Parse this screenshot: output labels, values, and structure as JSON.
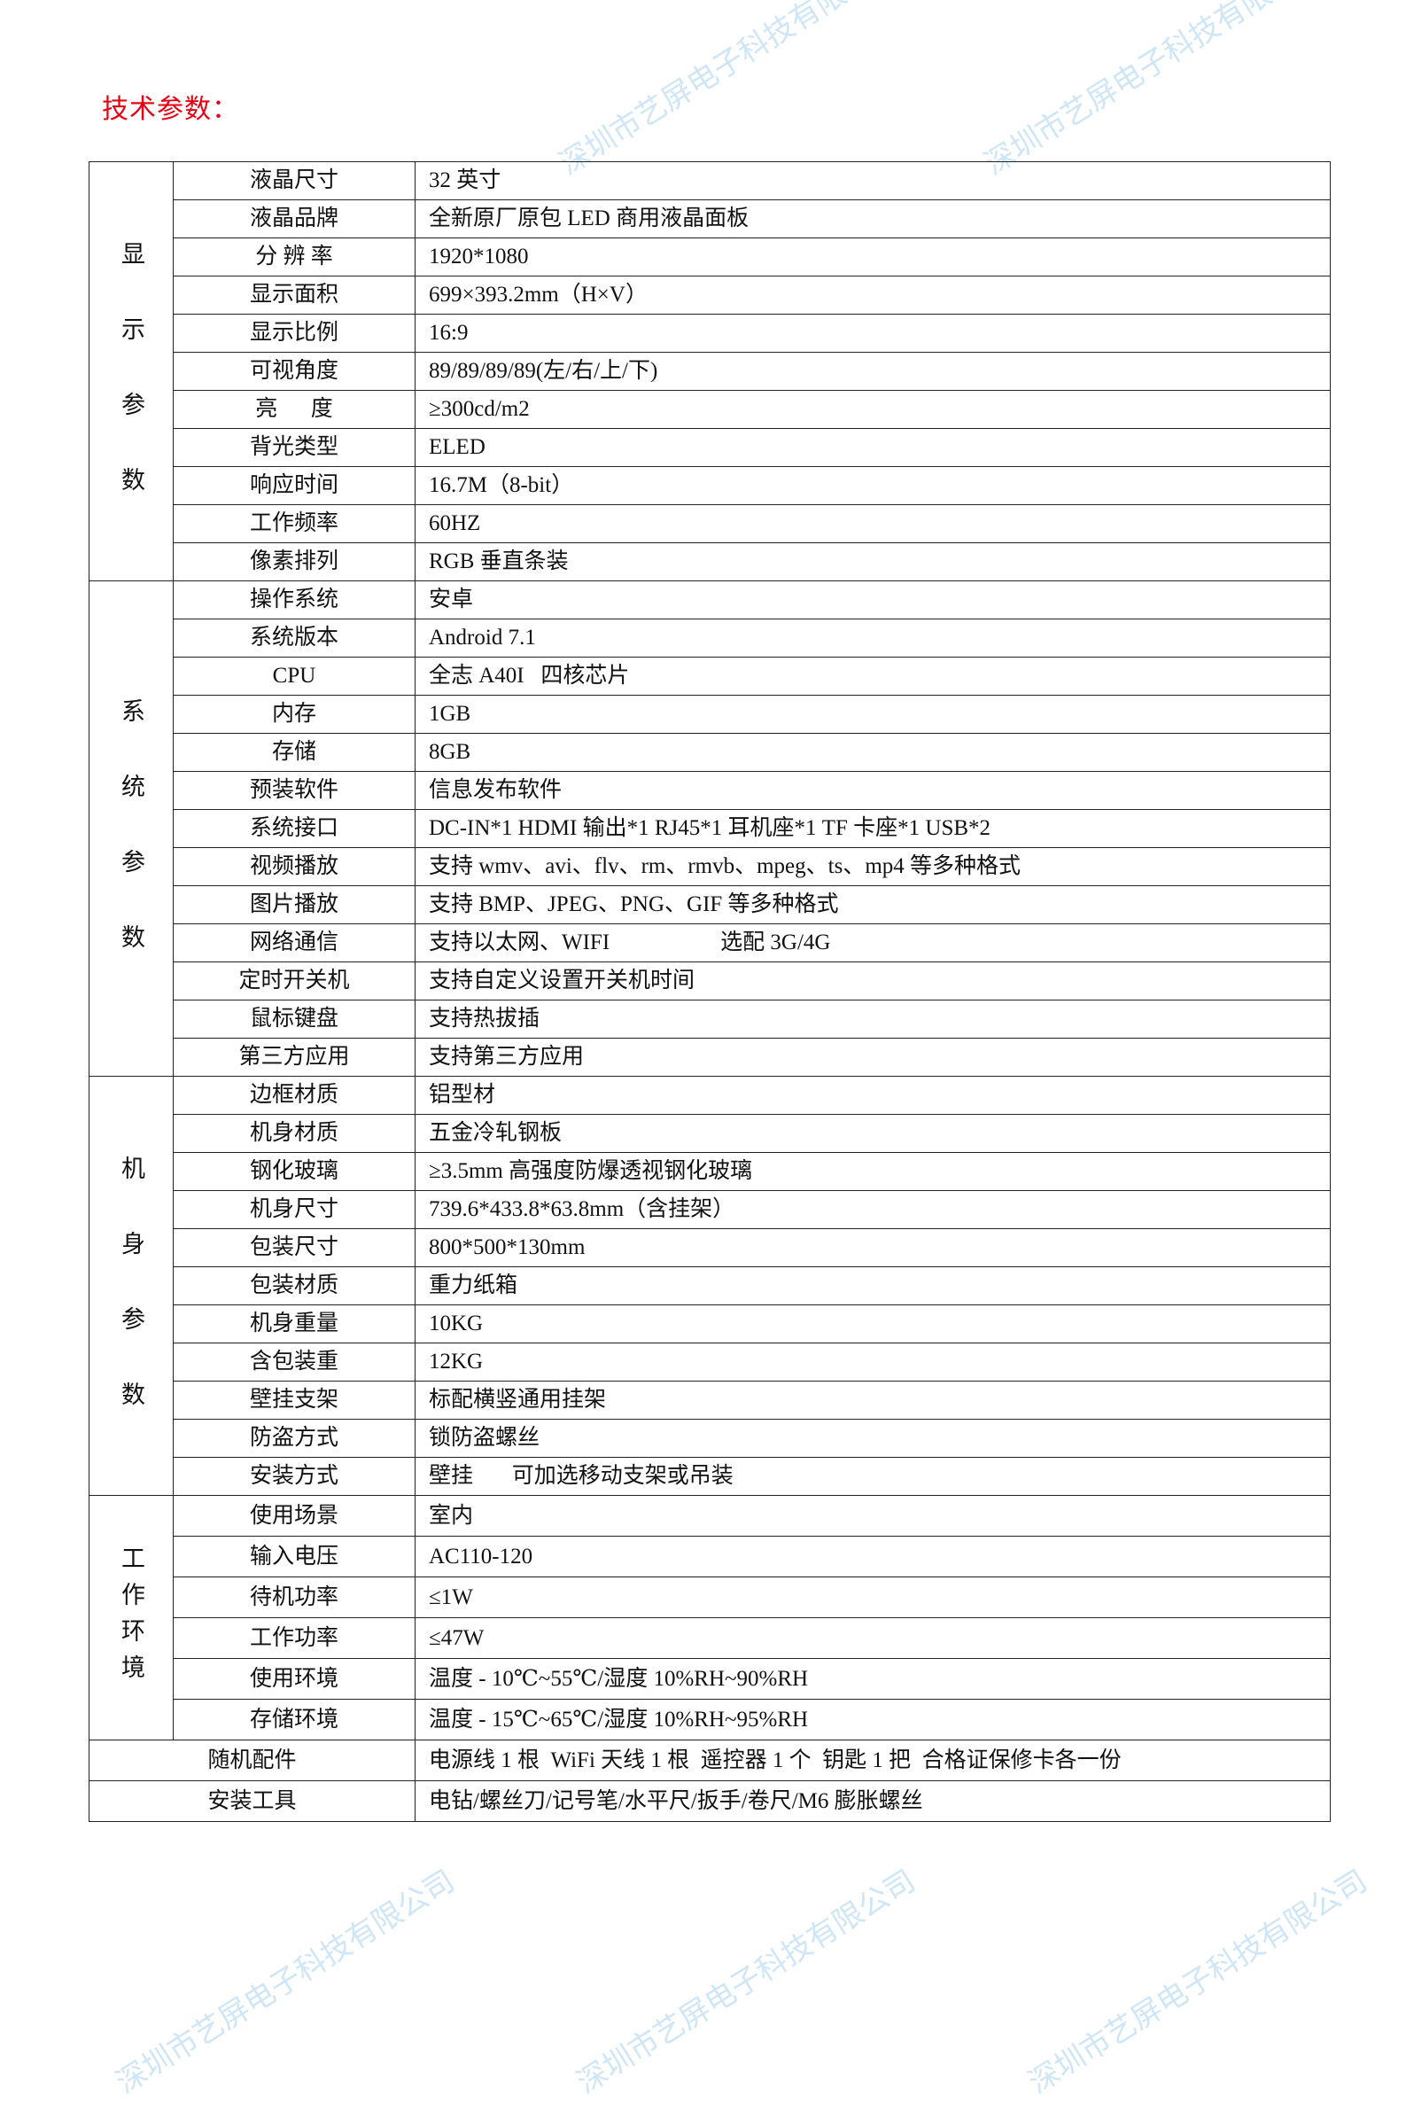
{
  "title": "技术参数：",
  "watermark": "深圳市艺屏电子科技有限公司",
  "colors": {
    "title": "#e60012",
    "watermark": "#cfe6f7"
  },
  "sections": [
    {
      "label": "显示参数",
      "rows": [
        [
          "液晶尺寸",
          "32 英寸"
        ],
        [
          "液晶品牌",
          "全新原厂原包 LED 商用液晶面板"
        ],
        [
          "分 辨 率",
          "1920*1080"
        ],
        [
          "显示面积",
          "699×393.2mm（H×V）"
        ],
        [
          "显示比例",
          "16:9"
        ],
        [
          "可视角度",
          "89/89/89/89(左/右/上/下)"
        ],
        [
          "亮      度",
          "≥300cd/m2"
        ],
        [
          "背光类型",
          "ELED"
        ],
        [
          "响应时间",
          "16.7M（8-bit）"
        ],
        [
          "工作频率",
          "60HZ"
        ],
        [
          "像素排列",
          "RGB 垂直条装"
        ]
      ]
    },
    {
      "label": "系统参数",
      "rows": [
        [
          "操作系统",
          "安卓"
        ],
        [
          "系统版本",
          "Android 7.1"
        ],
        [
          "CPU",
          "全志 A40I   四核芯片"
        ],
        [
          "内存",
          "1GB"
        ],
        [
          "存储",
          "8GB"
        ],
        [
          "预装软件",
          "信息发布软件"
        ],
        [
          "系统接口",
          "DC-IN*1 HDMI 输出*1 RJ45*1 耳机座*1 TF 卡座*1 USB*2"
        ],
        [
          "视频播放",
          "支持 wmv、avi、flv、rm、rmvb、mpeg、ts、mp4 等多种格式"
        ],
        [
          "图片播放",
          "支持 BMP、JPEG、PNG、GIF 等多种格式"
        ],
        [
          "网络通信",
          "支持以太网、WIFI                    选配 3G/4G"
        ],
        [
          "定时开关机",
          "支持自定义设置开关机时间"
        ],
        [
          "鼠标键盘",
          "支持热拔插"
        ],
        [
          "第三方应用",
          "支持第三方应用"
        ]
      ]
    },
    {
      "label": "机身参数",
      "rows": [
        [
          "边框材质",
          "铝型材"
        ],
        [
          "机身材质",
          "五金冷轧钢板"
        ],
        [
          "钢化玻璃",
          "≥3.5mm 高强度防爆透视钢化玻璃"
        ],
        [
          "机身尺寸",
          "739.6*433.8*63.8mm（含挂架）"
        ],
        [
          "包装尺寸",
          "800*500*130mm"
        ],
        [
          "包装材质",
          "重力纸箱"
        ],
        [
          "机身重量",
          "10KG"
        ],
        [
          "含包装重",
          "12KG"
        ],
        [
          "壁挂支架",
          "标配横竖通用挂架"
        ],
        [
          "防盗方式",
          "锁防盗螺丝"
        ],
        [
          "安装方式",
          "壁挂       可加选移动支架或吊装"
        ]
      ]
    },
    {
      "label": "工作环境",
      "compact": true,
      "rows": [
        [
          "使用场景",
          "室内"
        ],
        [
          "输入电压",
          "AC110-120"
        ],
        [
          "待机功率",
          "≤1W"
        ],
        [
          "工作功率",
          "≤47W"
        ],
        [
          "使用环境",
          "温度 - 10℃~55℃/湿度 10%RH~90%RH"
        ],
        [
          "存储环境",
          "温度 - 15℃~65℃/湿度 10%RH~95%RH"
        ]
      ]
    }
  ],
  "footer_rows": [
    [
      "随机配件",
      "电源线 1 根  WiFi 天线 1 根  遥控器 1 个  钥匙 1 把  合格证保修卡各一份"
    ],
    [
      "安装工具",
      "电钻/螺丝刀/记号笔/水平尺/扳手/卷尺/M6 膨胀螺丝"
    ]
  ]
}
